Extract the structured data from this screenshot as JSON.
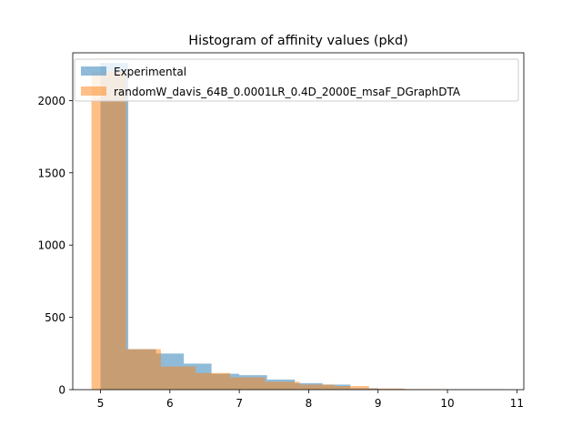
{
  "chart_data": {
    "type": "bar",
    "subtype": "overlapping-histogram",
    "title": "Histogram of affinity values (pkd)",
    "xlabel": "",
    "ylabel": "",
    "xlim": [
      4.6,
      11.1
    ],
    "ylim": [
      0,
      2330
    ],
    "x_ticks": [
      5,
      6,
      7,
      8,
      9,
      10,
      11
    ],
    "y_ticks": [
      0,
      500,
      1000,
      1500,
      2000
    ],
    "grid": false,
    "legend_position": "upper-left",
    "series": [
      {
        "name": "Experimental",
        "color": "#1f77b4",
        "opacity": 0.5,
        "bin_edges": [
          5.0,
          5.4,
          5.8,
          6.2,
          6.6,
          7.0,
          7.4,
          7.8,
          8.2,
          8.6,
          9.0,
          9.4,
          9.8,
          10.2,
          10.6,
          10.8
        ],
        "counts": [
          2260,
          280,
          250,
          180,
          110,
          100,
          70,
          45,
          35,
          10,
          5,
          3,
          2,
          1,
          1
        ]
      },
      {
        "name": "randomW_davis_64B_0.0001LR_0.4D_2000E_msaF_DGraphDTA",
        "color": "#ff7f0e",
        "opacity": 0.5,
        "bin_edges": [
          4.87,
          5.37,
          5.87,
          6.37,
          6.87,
          7.37,
          7.87,
          8.37,
          8.87,
          9.37,
          9.87,
          10.0
        ],
        "counts": [
          2200,
          280,
          160,
          115,
          85,
          55,
          35,
          25,
          8,
          4,
          3
        ]
      }
    ]
  }
}
